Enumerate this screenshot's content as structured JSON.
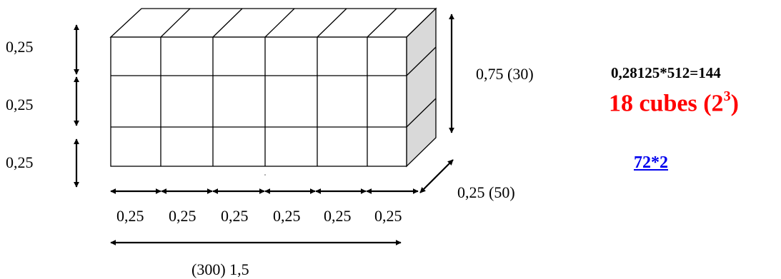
{
  "diagram": {
    "left_labels": [
      "0,25",
      "0,25",
      "0,25"
    ],
    "height_label": "0,75 (30)",
    "depth_label": "0,25 (50)",
    "bottom_labels": [
      "0,25",
      "0,25",
      "0,25",
      "0,25",
      "0,25",
      "0,25"
    ],
    "length_label": "(300)  1,5",
    "colors": {
      "line": "#000000",
      "side_face": "#d9d9d9",
      "top_face": "#ffffff",
      "front_face": "#ffffff"
    },
    "grid": {
      "columns": 6,
      "rows": 3
    }
  },
  "calculation": {
    "formula": "0,28125*512=144",
    "result_main": "18 cubes (2",
    "result_exp": "3",
    "result_close": ")",
    "result_color": "#ff0000",
    "link_text": "72*2",
    "link_color": "#0000ee"
  }
}
